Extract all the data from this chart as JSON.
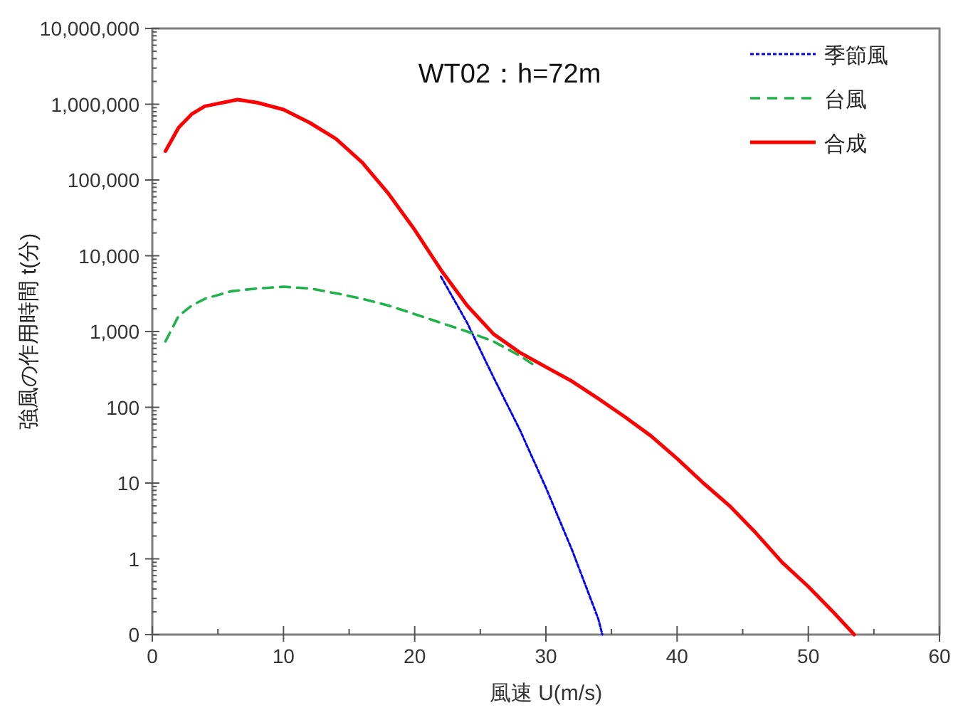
{
  "chart_data": {
    "type": "line",
    "title": "WT02：h=72m",
    "xlabel": "風速 U(m/s)",
    "ylabel": "強風の作用時間 t(分)",
    "log": "y",
    "xlim": [
      0,
      60
    ],
    "ylim": [
      0.1,
      10000000
    ],
    "xticks": [
      0,
      {
        "value": 5,
        "label": null
      },
      10,
      {
        "value": 15,
        "label": null
      },
      20,
      {
        "value": 25,
        "label": null
      },
      30,
      {
        "value": 35,
        "label": null
      },
      40,
      {
        "value": 45,
        "label": null
      },
      50,
      {
        "value": 55,
        "label": null
      },
      60
    ],
    "yticks": [
      {
        "value": 0.1,
        "label": "0"
      },
      1,
      10,
      100,
      {
        "value": 1000,
        "label": "1,000"
      },
      {
        "value": 10000,
        "label": "10,000"
      },
      {
        "value": 100000,
        "label": "100,000"
      },
      {
        "value": 1000000,
        "label": "1,000,000"
      },
      {
        "value": 10000000,
        "label": "10,000,000"
      }
    ],
    "grid": false,
    "legend": "top right",
    "series": [
      {
        "name": "季節風",
        "color": "#0000ff",
        "line_style": "dotted",
        "x": [
          22,
          24,
          26,
          28,
          30,
          32,
          34,
          34.3
        ],
        "values": [
          5300,
          1300,
          250,
          51,
          8.7,
          1.3,
          0.16,
          0.1
        ]
      },
      {
        "name": "台風",
        "color": "#21b34a",
        "line_style": "dashed",
        "x": [
          1,
          2,
          3,
          4,
          6,
          8,
          10,
          12,
          14,
          16,
          18,
          20,
          22,
          24,
          26,
          28,
          29
        ],
        "values": [
          740,
          1600,
          2200,
          2700,
          3400,
          3700,
          3900,
          3700,
          3200,
          2700,
          2200,
          1700,
          1300,
          1000,
          740,
          480,
          370
        ]
      },
      {
        "name": "合成",
        "color": "#ff0000",
        "line_style": "solid",
        "x": [
          1,
          2,
          3,
          4,
          6.5,
          8,
          10,
          12,
          14,
          16,
          18,
          20,
          22,
          24,
          26,
          28,
          30,
          32,
          34,
          36,
          38,
          40,
          42,
          44,
          46,
          48,
          50,
          52,
          53.5
        ],
        "values": [
          240000,
          490000,
          740000,
          940000,
          1150000,
          1050000,
          850000,
          570000,
          350000,
          170000,
          66000,
          22000,
          6500,
          2200,
          930,
          530,
          340,
          220,
          130,
          75,
          42,
          21,
          10,
          5,
          2.2,
          0.9,
          0.43,
          0.19,
          0.1
        ]
      }
    ]
  }
}
